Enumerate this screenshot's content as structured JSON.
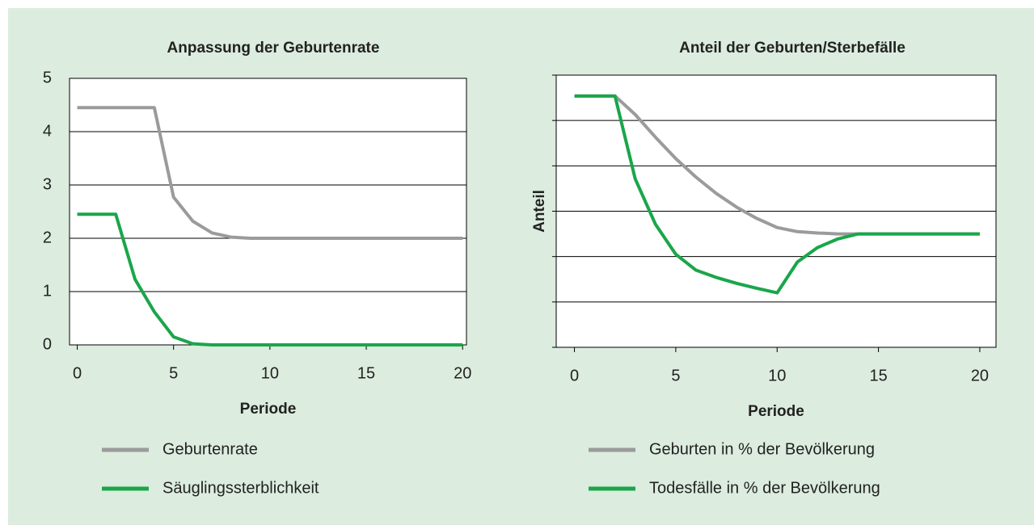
{
  "chart_data": [
    {
      "type": "line",
      "title": "Anpassung der Geburtenrate",
      "x_label": "Periode",
      "x": [
        0,
        1,
        2,
        3,
        4,
        5,
        6,
        7,
        8,
        9,
        10,
        11,
        12,
        13,
        14,
        15,
        16,
        17,
        18,
        19,
        20
      ],
      "xlim": [
        -0.4,
        20.2
      ],
      "xticks": [
        0,
        5,
        10,
        15,
        20
      ],
      "ylim": [
        0,
        5
      ],
      "yticks": [
        0,
        1,
        2,
        3,
        4,
        5
      ],
      "grid": true,
      "series": [
        {
          "name": "Geburtenrate",
          "color": "#9b9b9b",
          "values": [
            4.45,
            4.45,
            4.45,
            4.45,
            4.45,
            2.77,
            2.32,
            2.1,
            2.02,
            2,
            2,
            2,
            2,
            2,
            2,
            2,
            2,
            2,
            2,
            2,
            2
          ]
        },
        {
          "name": "Säuglingssterblichkeit",
          "color": "#1aa64a",
          "values": [
            2.45,
            2.45,
            2.45,
            1.23,
            0.62,
            0.15,
            0.02,
            0,
            0,
            0,
            0,
            0,
            0,
            0,
            0,
            0,
            0,
            0,
            0,
            0,
            0
          ]
        }
      ]
    },
    {
      "type": "line",
      "title": "Anteil der Geburten/Sterbefälle",
      "x_label": "Periode",
      "y_label": "Anteil",
      "x": [
        0,
        1,
        2,
        3,
        4,
        5,
        6,
        7,
        8,
        9,
        10,
        11,
        12,
        13,
        14,
        15,
        16,
        17,
        18,
        19,
        20
      ],
      "xlim": [
        -0.9,
        20.8
      ],
      "xticks": [
        0,
        5,
        10,
        15,
        20
      ],
      "ylim": [
        0,
        6
      ],
      "yticks": [
        0,
        1,
        2,
        3,
        4,
        5,
        6
      ],
      "grid": true,
      "series": [
        {
          "name": "Geburten in % der Bevölkerung",
          "color": "#9b9b9b",
          "values": [
            5.54,
            5.54,
            5.54,
            5.13,
            4.63,
            4.16,
            3.75,
            3.39,
            3.09,
            2.84,
            2.64,
            2.55,
            2.52,
            2.5,
            2.5,
            2.5,
            2.5,
            2.5,
            2.5,
            2.5,
            2.5
          ]
        },
        {
          "name": "Todesfälle in % der Bevölkerung",
          "color": "#1aa64a",
          "values": [
            5.54,
            5.54,
            5.54,
            3.71,
            2.71,
            2.05,
            1.7,
            1.54,
            1.41,
            1.3,
            1.2,
            1.88,
            2.2,
            2.39,
            2.5,
            2.5,
            2.5,
            2.5,
            2.5,
            2.5,
            2.5
          ]
        }
      ]
    }
  ]
}
